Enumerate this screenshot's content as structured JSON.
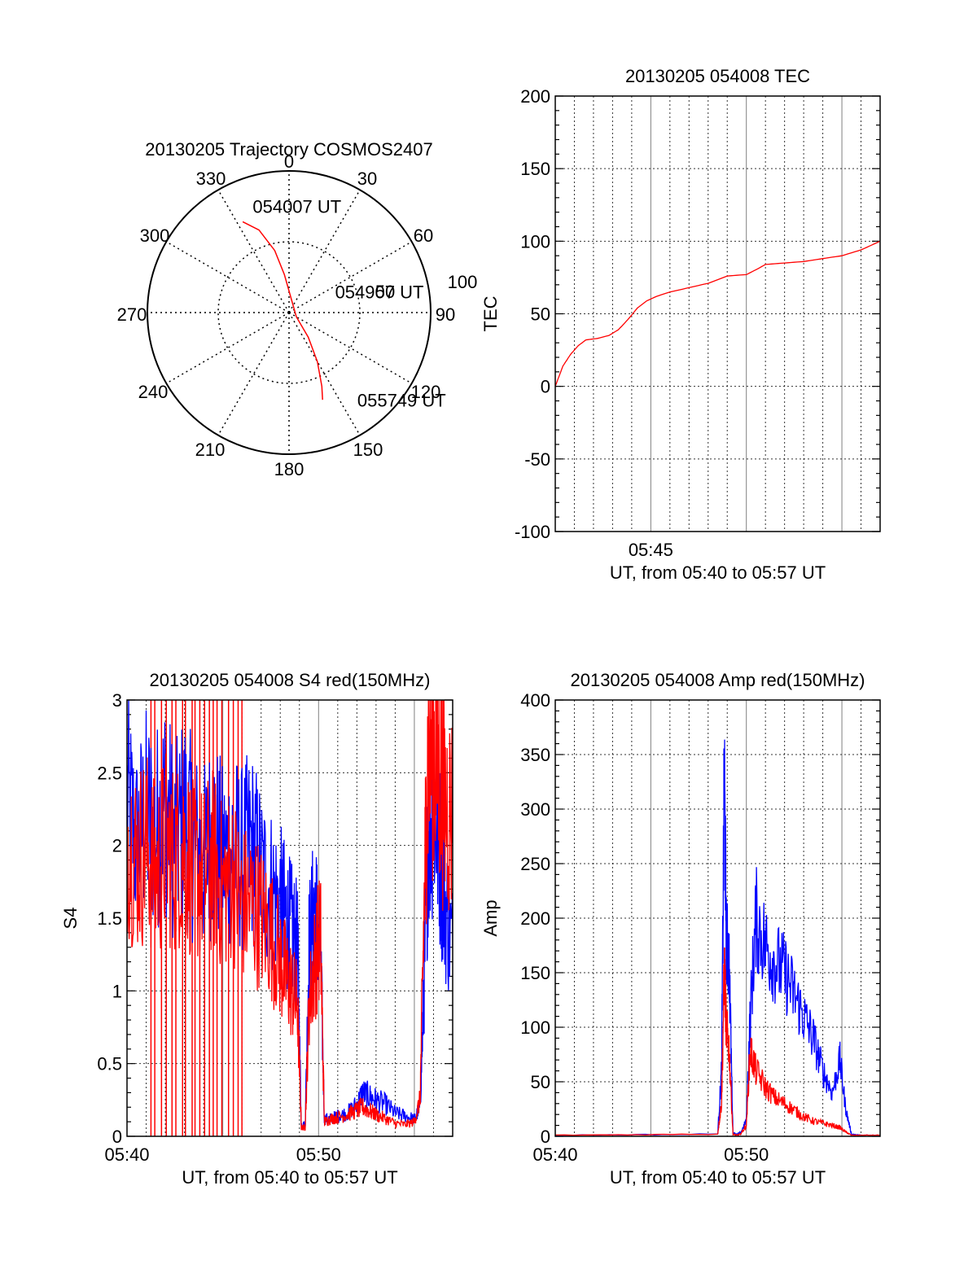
{
  "colors": {
    "series_red": "#ff0000",
    "series_blue": "#0000ff",
    "axis": "#000000",
    "grid": "#000000"
  },
  "chart_data": [
    {
      "id": "trajectory",
      "type": "polar",
      "title": "20130205 Trajectory COSMOS2407",
      "azimuth_labels": [
        "0",
        "30",
        "60",
        "90",
        "120",
        "150",
        "180",
        "210",
        "240",
        "270",
        "300",
        "330"
      ],
      "radial_labels": [
        "50",
        "100"
      ],
      "grid": true,
      "track": {
        "color": "red",
        "points": [
          {
            "az": 333,
            "zen": 72
          },
          {
            "az": 340,
            "zen": 62
          },
          {
            "az": 347,
            "zen": 45
          },
          {
            "az": 353,
            "zen": 27
          },
          {
            "az": 120,
            "zen": 6
          },
          {
            "az": 142,
            "zen": 22
          },
          {
            "az": 150,
            "zen": 40
          },
          {
            "az": 156,
            "zen": 57
          },
          {
            "az": 159,
            "zen": 66
          }
        ]
      },
      "annotations": [
        {
          "text": "054007 UT",
          "az": 340,
          "zen": 75
        },
        {
          "text": "054907 UT",
          "az": 73,
          "zen": 34
        },
        {
          "text": "055749 UT",
          "az": 144,
          "zen": 82
        }
      ]
    },
    {
      "id": "tec",
      "type": "line",
      "title": "20130205 054008 TEC",
      "xlabel": "UT, from 05:40 to 05:57 UT",
      "ylabel": "TEC",
      "xlim": [
        0,
        17
      ],
      "ylim": [
        -100,
        200
      ],
      "x_ticks": [
        {
          "x": 5,
          "label": "05:45"
        }
      ],
      "y_ticks": [
        "-100",
        "-50",
        "0",
        "50",
        "100",
        "150",
        "200"
      ],
      "grid": true,
      "series": [
        {
          "color": "red",
          "x": [
            0,
            0.4,
            0.8,
            1.2,
            1.6,
            2.2,
            2.8,
            3.3,
            3.8,
            4.3,
            4.8,
            5.3,
            6,
            7,
            8,
            9,
            10,
            10.6,
            11,
            12,
            13,
            14,
            15,
            16,
            16.5,
            17
          ],
          "y": [
            0,
            14,
            22,
            28,
            32,
            33,
            35,
            39,
            46,
            54,
            59,
            62,
            65,
            68,
            71,
            76,
            77,
            81,
            84,
            85,
            86,
            88,
            90,
            94,
            97,
            100
          ]
        }
      ]
    },
    {
      "id": "s4",
      "type": "line",
      "title": "20130205 054008 S4 red(150MHz)",
      "xlabel": "UT, from 05:40 to 05:57 UT",
      "ylabel": "S4",
      "xlim": [
        0,
        17
      ],
      "ylim": [
        0,
        3
      ],
      "x_ticks": [
        {
          "x": 0,
          "label": "05:40"
        },
        {
          "x": 10,
          "label": "05:50"
        }
      ],
      "y_ticks": [
        "0",
        "0.5",
        "1",
        "1.5",
        "2",
        "2.5",
        "3"
      ],
      "grid": true,
      "series": [
        {
          "color": "blue",
          "x": [
            0,
            0.5,
            1,
            1.5,
            2,
            2.5,
            3,
            3.5,
            4,
            4.5,
            5,
            5.5,
            6,
            6.5,
            7,
            7.5,
            8,
            8.3,
            8.6,
            8.9,
            9.1,
            9.3,
            9.5,
            9.8,
            10.1,
            10.3,
            10.6,
            11,
            11.5,
            12,
            12.3,
            12.6,
            13,
            13.5,
            14,
            14.5,
            15,
            15.3,
            15.5,
            15.7,
            16,
            16.3,
            16.6,
            17
          ],
          "y": [
            2.3,
            2.0,
            2.2,
            2.1,
            2.3,
            2.0,
            2.2,
            2.0,
            1.9,
            2.1,
            1.9,
            2.0,
            1.9,
            2.0,
            1.8,
            1.7,
            1.6,
            1.5,
            1.4,
            1.3,
            0.08,
            0.08,
            1.3,
            1.6,
            1.3,
            0.12,
            0.12,
            0.14,
            0.16,
            0.22,
            0.3,
            0.28,
            0.25,
            0.22,
            0.16,
            0.14,
            0.12,
            0.2,
            1.0,
            2.0,
            2.3,
            2.0,
            1.6,
            1.3
          ]
        },
        {
          "color": "red",
          "x": [
            0,
            0.5,
            1,
            1.5,
            2,
            2.5,
            3,
            3.5,
            4,
            4.5,
            5,
            5.5,
            6,
            6.5,
            7,
            7.5,
            8,
            8.3,
            8.6,
            8.9,
            9.1,
            9.3,
            9.5,
            9.8,
            10.1,
            10.3,
            10.6,
            11,
            11.5,
            12,
            12.3,
            12.6,
            13,
            13.5,
            14,
            14.5,
            15,
            15.3,
            15.5,
            15.7,
            16,
            16.3,
            16.6,
            17
          ],
          "y": [
            2.1,
            1.9,
            2.0,
            1.8,
            2.0,
            1.9,
            2.0,
            1.8,
            1.8,
            1.9,
            1.7,
            1.8,
            1.6,
            1.6,
            1.5,
            1.4,
            1.2,
            1.1,
            1.0,
            0.9,
            0.06,
            0.06,
            0.9,
            1.2,
            1.4,
            0.1,
            0.12,
            0.13,
            0.15,
            0.18,
            0.2,
            0.18,
            0.15,
            0.12,
            0.09,
            0.08,
            0.1,
            0.25,
            1.5,
            2.6,
            2.7,
            2.5,
            2.3,
            2.2
          ]
        }
      ],
      "red_dropouts_x": [
        1.25,
        1.45,
        1.8,
        2.05,
        2.35,
        2.55,
        2.9,
        3.05,
        3.4,
        3.55,
        3.8,
        4.05,
        4.3,
        4.5,
        4.7,
        4.95,
        5.3,
        5.55,
        5.8,
        6.0
      ]
    },
    {
      "id": "amp",
      "type": "line",
      "title": "20130205 054008 Amp red(150MHz)",
      "xlabel": "UT, from 05:40 to 05:57 UT",
      "ylabel": "Amp",
      "xlim": [
        0,
        17
      ],
      "ylim": [
        0,
        400
      ],
      "x_ticks": [
        {
          "x": 0,
          "label": "05:40"
        },
        {
          "x": 10,
          "label": "05:50"
        }
      ],
      "y_ticks": [
        "0",
        "50",
        "100",
        "150",
        "200",
        "250",
        "300",
        "350",
        "400"
      ],
      "grid": true,
      "series": [
        {
          "color": "blue",
          "x": [
            0,
            8.5,
            8.7,
            8.85,
            8.95,
            9.1,
            9.3,
            9.5,
            9.7,
            10.0,
            10.2,
            10.5,
            11,
            11.5,
            12,
            12.5,
            13,
            13.5,
            14,
            14.5,
            14.9,
            15.2,
            15.5,
            16,
            17
          ],
          "y": [
            1,
            2,
            60,
            330,
            180,
            160,
            3,
            2,
            3,
            15,
            110,
            200,
            175,
            160,
            150,
            130,
            110,
            90,
            60,
            40,
            70,
            25,
            2,
            1,
            1
          ]
        },
        {
          "color": "red",
          "x": [
            0,
            8.5,
            8.7,
            8.85,
            8.95,
            9.1,
            9.3,
            9.5,
            9.7,
            10.0,
            10.2,
            10.5,
            11,
            11.5,
            12,
            12.5,
            13,
            13.5,
            14,
            14.5,
            14.9,
            15.2,
            15.5,
            16,
            17
          ],
          "y": [
            1,
            2,
            30,
            155,
            100,
            80,
            2,
            1,
            2,
            10,
            80,
            60,
            45,
            35,
            30,
            24,
            18,
            14,
            12,
            10,
            8,
            4,
            1,
            1,
            1
          ]
        }
      ]
    }
  ]
}
